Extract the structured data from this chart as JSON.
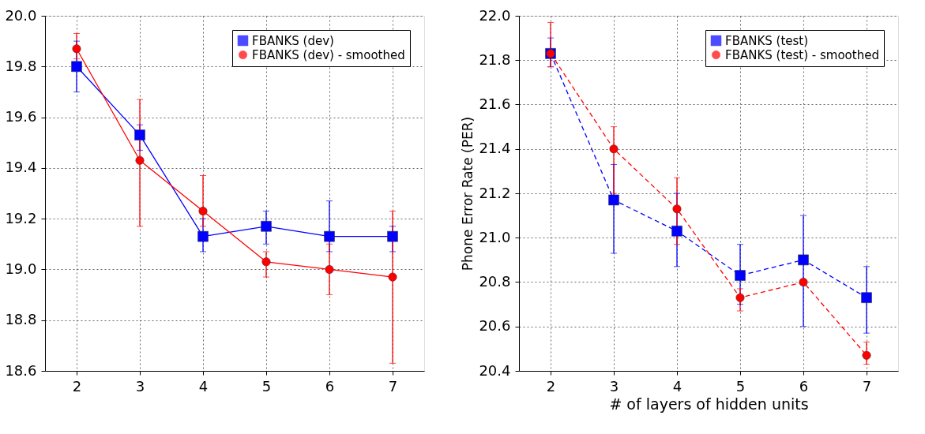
{
  "chart_data": [
    {
      "type": "line",
      "xlim": [
        1.5,
        7.5
      ],
      "xticks": [
        2,
        3,
        4,
        5,
        6,
        7
      ],
      "ylim": [
        18.6,
        20.0
      ],
      "yticks": [
        18.6,
        18.8,
        {
          "value": 19,
          "label": "19.0"
        },
        19.2,
        19.4,
        19.6,
        19.8,
        {
          "value": 20,
          "label": "20.0"
        }
      ],
      "grid": true,
      "legend": "top right",
      "line_style": "solid",
      "x": [
        2,
        3,
        4,
        5,
        6,
        7
      ],
      "series": [
        {
          "name": "FBANKS (dev)",
          "color": "#0000ff",
          "marker": "square",
          "values": [
            19.8,
            19.53,
            19.13,
            19.17,
            19.13,
            19.13
          ],
          "errors": [
            [
              19.7,
              19.9
            ],
            [
              19.47,
              19.57
            ],
            [
              19.07,
              19.2
            ],
            [
              19.1,
              19.23
            ],
            [
              19.07,
              19.27
            ],
            [
              19.07,
              19.17
            ]
          ]
        },
        {
          "name": "FBANKS (dev) - smoothed",
          "color": "#ff0000",
          "marker": "circle",
          "values": [
            19.87,
            19.43,
            19.23,
            19.03,
            19.0,
            18.97
          ],
          "errors": [
            [
              19.83,
              19.93
            ],
            [
              19.17,
              19.67
            ],
            [
              19.17,
              19.37
            ],
            [
              18.97,
              19.07
            ],
            [
              18.9,
              19.1
            ],
            [
              18.63,
              19.23
            ]
          ]
        }
      ]
    },
    {
      "type": "line",
      "xlabel": "# of layers of hidden units",
      "ylabel": "Phone Error Rate (PER)",
      "xlim": [
        1.5,
        7.5
      ],
      "xticks": [
        2,
        3,
        4,
        5,
        6,
        7
      ],
      "ylim": [
        20.4,
        22.0
      ],
      "yticks": [
        20.4,
        20.6,
        20.8,
        {
          "value": 21,
          "label": "21.0"
        },
        21.2,
        21.4,
        21.6,
        21.8,
        {
          "value": 22,
          "label": "22.0"
        }
      ],
      "grid": true,
      "legend": "top right",
      "line_style": "dashed",
      "x": [
        2,
        3,
        4,
        5,
        6,
        7
      ],
      "series": [
        {
          "name": "FBANKS (test)",
          "color": "#0000ff",
          "marker": "square",
          "values": [
            21.83,
            21.17,
            21.03,
            20.83,
            20.9,
            20.73
          ],
          "errors": [
            [
              21.77,
              21.9
            ],
            [
              20.93,
              21.33
            ],
            [
              20.87,
              21.2
            ],
            [
              20.7,
              20.97
            ],
            [
              20.6,
              21.1
            ],
            [
              20.57,
              20.87
            ]
          ]
        },
        {
          "name": "FBANKS (test) - smoothed",
          "color": "#ff0000",
          "marker": "circle",
          "values": [
            21.83,
            21.4,
            21.13,
            20.73,
            20.8,
            20.47
          ],
          "errors": [
            [
              21.77,
              21.97
            ],
            [
              21.2,
              21.5
            ],
            [
              20.97,
              21.27
            ],
            [
              20.67,
              20.77
            ],
            null,
            [
              20.43,
              20.53
            ]
          ]
        }
      ]
    }
  ]
}
